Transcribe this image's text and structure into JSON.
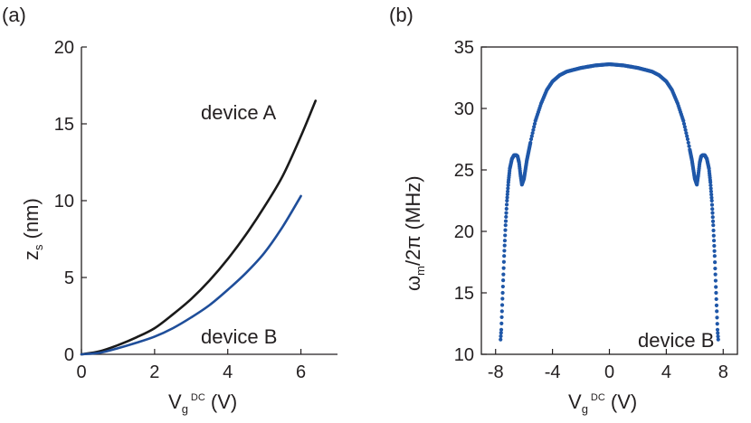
{
  "chart_data": [
    {
      "type": "line",
      "panel_label": "(a)",
      "xlabel": {
        "main": "V",
        "sub": "g",
        "sup": "DC",
        "unit": " (V)"
      },
      "ylabel": {
        "main": "z",
        "sub": "s",
        "unit": " (nm)"
      },
      "xlim": [
        0,
        7
      ],
      "ylim": [
        0,
        20
      ],
      "xticks": [
        0,
        2,
        4,
        6
      ],
      "yticks": [
        0,
        5,
        10,
        15,
        20
      ],
      "grid": false,
      "annotations": [
        "device A",
        "device B"
      ],
      "series": [
        {
          "name": "device A",
          "color": "#1a1a1a",
          "x": [
            0,
            0.5,
            1,
            1.5,
            2,
            2.5,
            3,
            3.5,
            4,
            4.5,
            5,
            5.5,
            6,
            6.4
          ],
          "y": [
            0,
            0.2,
            0.6,
            1.1,
            1.7,
            2.6,
            3.6,
            4.8,
            6.2,
            7.8,
            9.6,
            11.6,
            14.2,
            16.5
          ]
        },
        {
          "name": "device B",
          "color": "#1f4e9a",
          "x": [
            0,
            0.5,
            1,
            1.5,
            2,
            2.5,
            3,
            3.5,
            4,
            4.5,
            5,
            5.5,
            6
          ],
          "y": [
            0,
            0.1,
            0.4,
            0.75,
            1.15,
            1.7,
            2.4,
            3.2,
            4.2,
            5.3,
            6.6,
            8.3,
            10.3
          ]
        }
      ]
    },
    {
      "type": "scatter",
      "panel_label": "(b)",
      "xlabel": {
        "main": "V",
        "sub": "g",
        "sup": "DC",
        "unit": " (V)"
      },
      "ylabel": {
        "main": "ω",
        "sub": "m",
        "unit": "/2π (MHz)"
      },
      "xlim": [
        -9,
        9
      ],
      "ylim": [
        10,
        35
      ],
      "xticks": [
        -8,
        -4,
        0,
        4,
        8
      ],
      "yticks": [
        10,
        15,
        20,
        25,
        30,
        35
      ],
      "grid": false,
      "annotations": [
        "device B"
      ],
      "color": "#1f57a8",
      "curve_points": {
        "x": [
          0,
          1,
          2,
          3,
          3.5,
          4,
          4.4,
          4.8,
          5.2,
          5.5,
          5.8,
          6.0,
          6.15,
          6.25,
          6.35,
          6.45,
          6.55,
          6.7,
          6.85,
          7.0,
          7.1,
          7.2,
          7.3,
          7.4,
          7.5,
          7.55,
          7.6,
          7.65
        ],
        "y": [
          33.6,
          33.5,
          33.3,
          33.0,
          32.7,
          32.2,
          31.5,
          30.4,
          29.0,
          27.5,
          25.8,
          24.3,
          23.8,
          24.6,
          25.6,
          26.1,
          26.2,
          26.2,
          25.9,
          25.1,
          24.0,
          22.5,
          20.5,
          18.0,
          15.0,
          13.5,
          12.0,
          11.2
        ]
      }
    }
  ]
}
